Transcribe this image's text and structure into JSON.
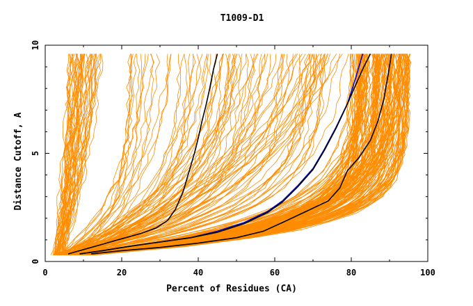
{
  "chart_data": {
    "type": "line",
    "title": "T1009-D1",
    "xlabel": "Percent of Residues (CA)",
    "ylabel": "Distance Cutoff, A",
    "xlim": [
      0,
      100
    ],
    "ylim": [
      0,
      10
    ],
    "x_ticks": [
      0,
      20,
      40,
      60,
      80,
      100
    ],
    "x_tick_labels": [
      "0",
      "20",
      "40",
      "60",
      "80",
      "100"
    ],
    "y_ticks": [
      0,
      5,
      10
    ],
    "y_tick_labels": [
      "0",
      "5",
      "10"
    ],
    "grid": false,
    "colors": {
      "background_models": "#ff8c00",
      "highlight_black": "#000000",
      "highlight_blue": "#0000cd"
    },
    "background_series_description": "approx. 250 orange GDT curves for all submitted models",
    "highlight_series": [
      {
        "name": "model-black-1",
        "color": "#000000",
        "x": [
          6,
          10,
          15,
          20,
          25,
          29,
          32,
          34,
          36,
          37,
          38,
          39,
          40,
          41,
          42,
          43,
          44,
          45
        ],
        "y": [
          0.35,
          0.55,
          0.8,
          1.05,
          1.3,
          1.55,
          1.9,
          2.4,
          3.2,
          3.8,
          4.4,
          5.0,
          5.7,
          6.5,
          7.2,
          8.0,
          8.9,
          9.6
        ]
      },
      {
        "name": "model-blue-1",
        "color": "#0000cd",
        "x": [
          9,
          15,
          22,
          30,
          38,
          45,
          52,
          58,
          62,
          66,
          70,
          73,
          76,
          79,
          81,
          83
        ],
        "y": [
          0.35,
          0.5,
          0.7,
          0.9,
          1.1,
          1.4,
          1.8,
          2.3,
          2.8,
          3.5,
          4.3,
          5.2,
          6.2,
          7.3,
          8.4,
          9.6
        ]
      },
      {
        "name": "model-black-2",
        "color": "#000000",
        "x": [
          9,
          15,
          22,
          30,
          38,
          45,
          52,
          58,
          62,
          66,
          70,
          73,
          76,
          78.5,
          81,
          83,
          85
        ],
        "y": [
          0.35,
          0.5,
          0.7,
          0.9,
          1.1,
          1.35,
          1.75,
          2.25,
          2.75,
          3.45,
          4.25,
          5.15,
          6.15,
          7.1,
          8.1,
          8.9,
          9.6
        ]
      },
      {
        "name": "model-black-3",
        "color": "#000000",
        "x": [
          12,
          20,
          30,
          40,
          50,
          57,
          62,
          68,
          74,
          77,
          79,
          82,
          85,
          87,
          88.5,
          89.5,
          90.5
        ],
        "y": [
          0.35,
          0.5,
          0.65,
          0.85,
          1.1,
          1.4,
          1.8,
          2.3,
          2.8,
          3.4,
          4.2,
          4.8,
          5.6,
          6.5,
          7.5,
          8.5,
          9.6
        ]
      }
    ]
  }
}
